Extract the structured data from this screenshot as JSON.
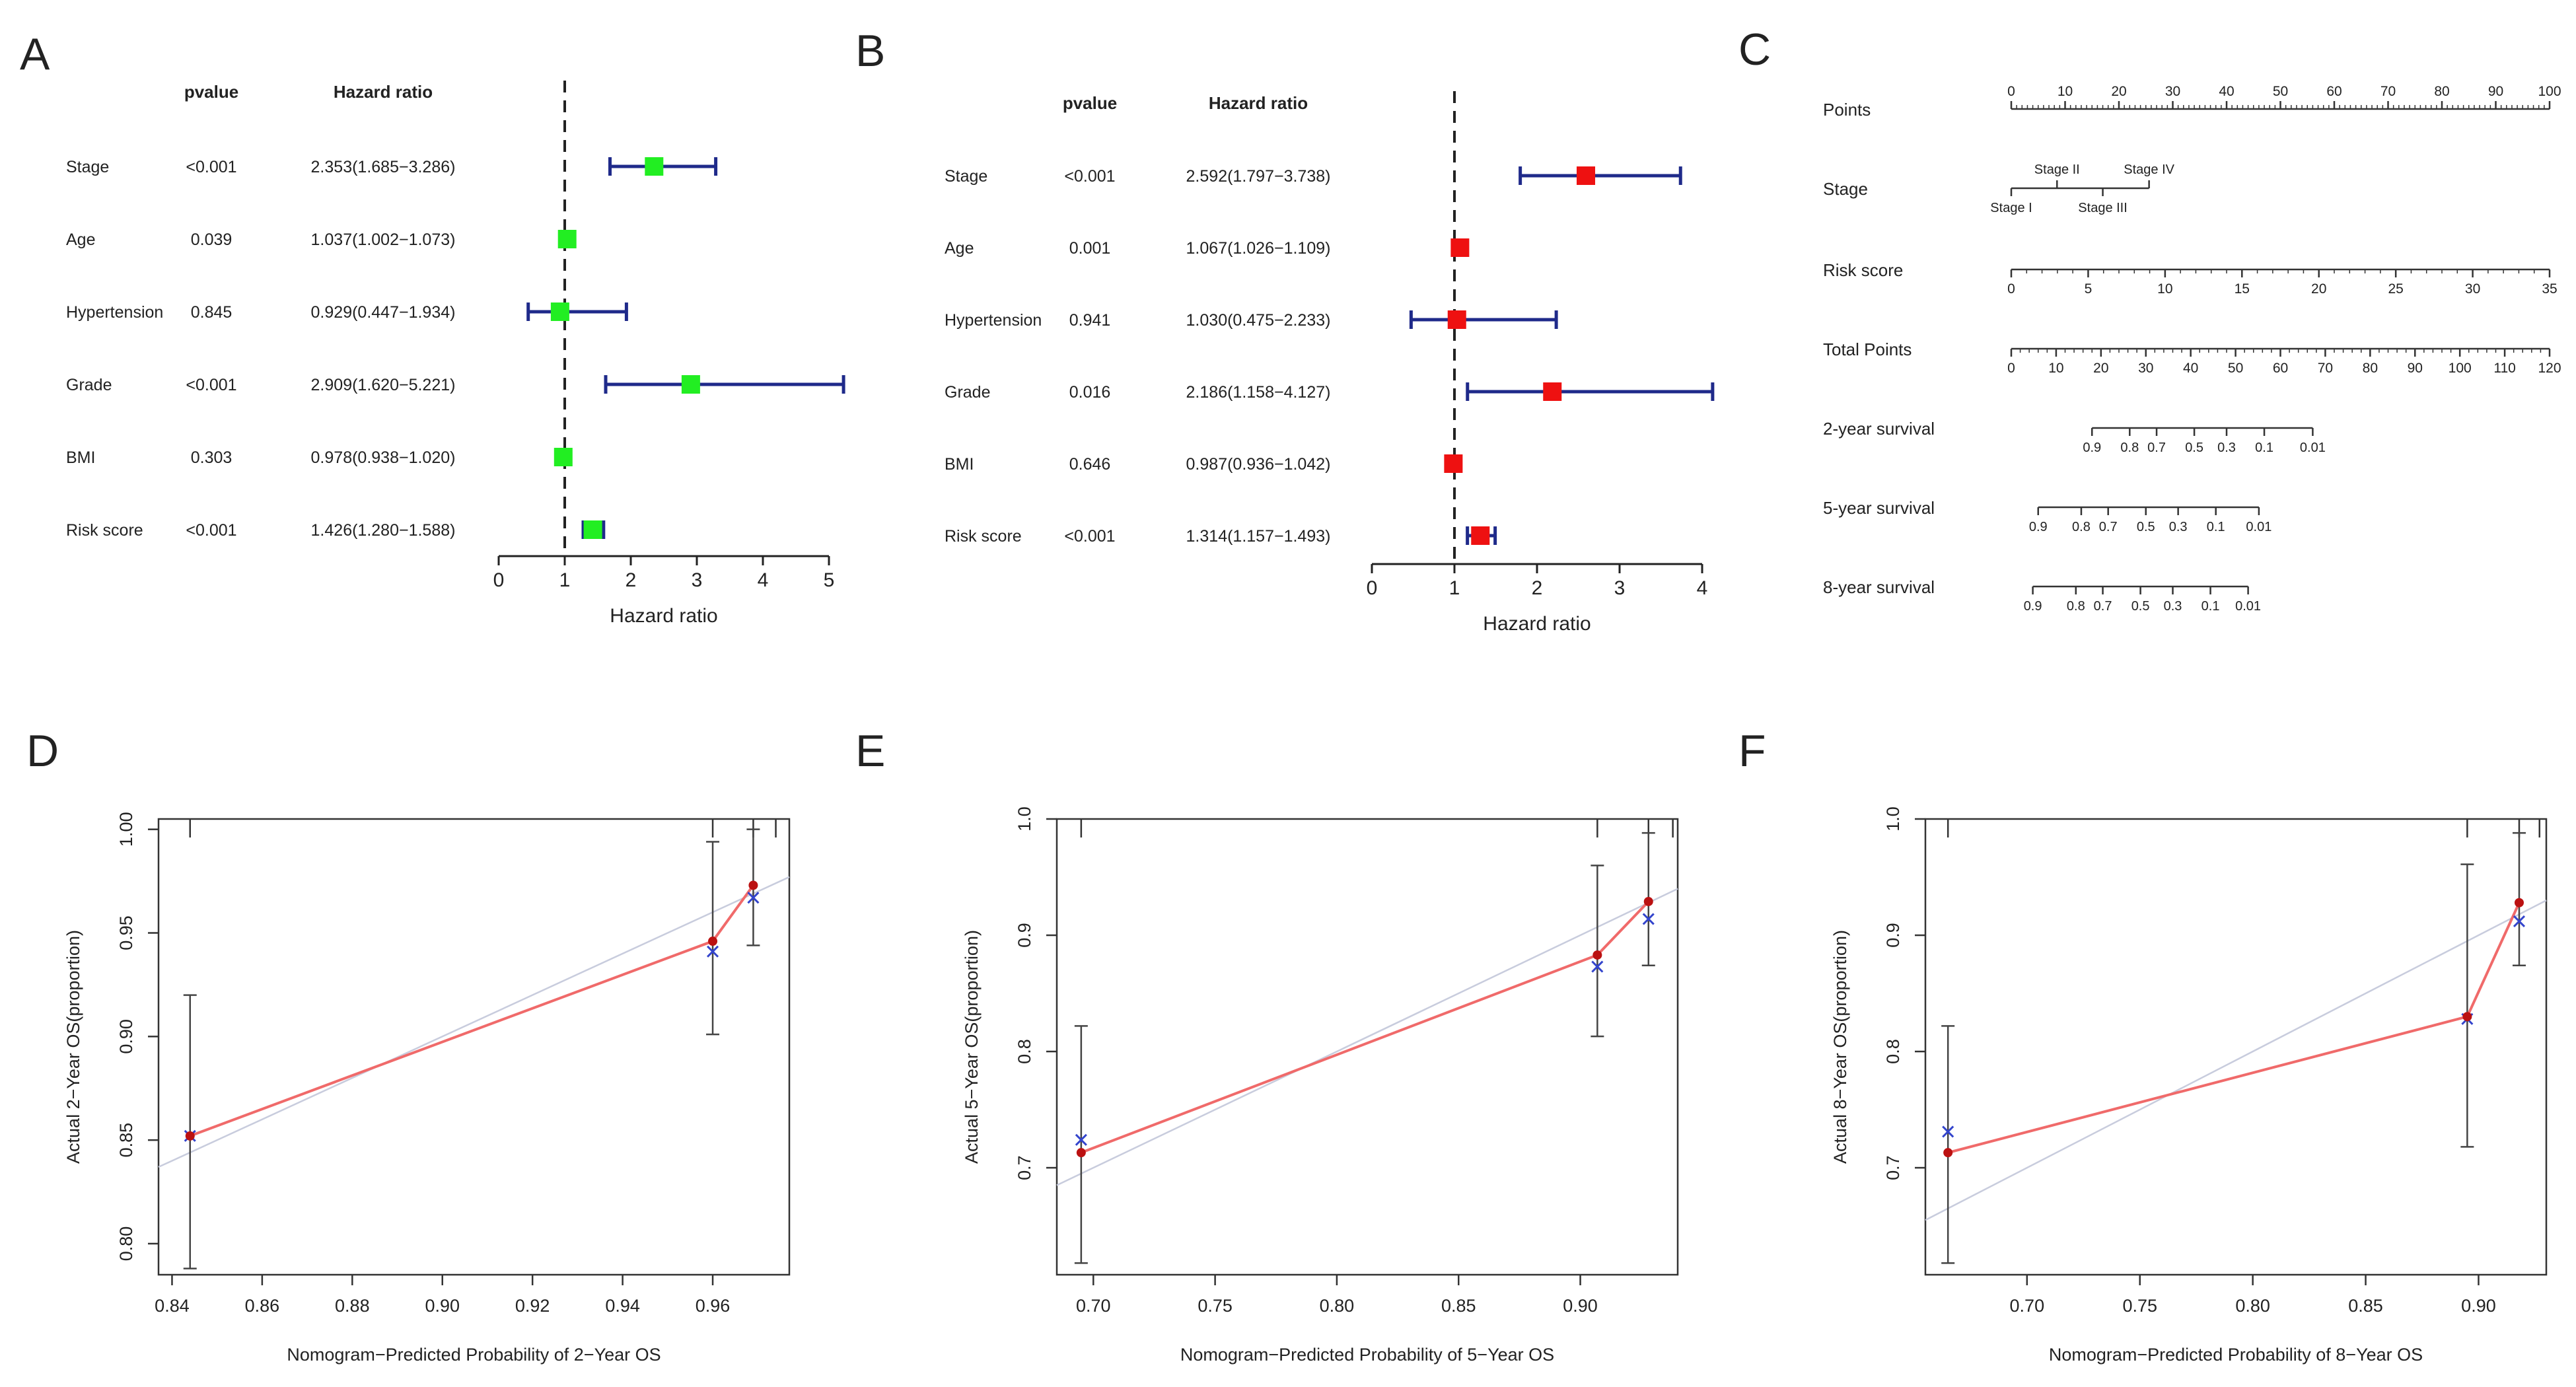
{
  "panels": [
    {
      "letter": "A"
    },
    {
      "letter": "B"
    },
    {
      "letter": "C"
    },
    {
      "letter": "D"
    },
    {
      "letter": "E"
    },
    {
      "letter": "F"
    }
  ],
  "colors": {
    "panel_a_marker": "#22ee22",
    "panel_b_marker": "#ee1111",
    "ci_line": "#1f2a8a",
    "calib_line": "#f06a6a",
    "calib_point": "#bb1111",
    "calib_cross": "#3344cc",
    "ideal_line": "#c8ccdd"
  },
  "chart_data": [
    {
      "panel": "A",
      "type": "forest",
      "col_pvalue": "pvalue",
      "col_hr": "Hazard ratio",
      "xlabel": "Hazard ratio",
      "xlim": [
        0,
        5
      ],
      "xticks": [
        "0",
        "1",
        "2",
        "3",
        "4",
        "5"
      ],
      "rows": [
        {
          "name": "Stage",
          "p": "<0.001",
          "hr_text": "2.353(1.685−3.286)",
          "hr": 2.353,
          "lo": 1.685,
          "hi": 3.286
        },
        {
          "name": "Age",
          "p": "0.039",
          "hr_text": "1.037(1.002−1.073)",
          "hr": 1.037,
          "lo": 1.002,
          "hi": 1.073
        },
        {
          "name": "Hypertension",
          "p": "0.845",
          "hr_text": "0.929(0.447−1.934)",
          "hr": 0.929,
          "lo": 0.447,
          "hi": 1.934
        },
        {
          "name": "Grade",
          "p": "<0.001",
          "hr_text": "2.909(1.620−5.221)",
          "hr": 2.909,
          "lo": 1.62,
          "hi": 5.221
        },
        {
          "name": "BMI",
          "p": "0.303",
          "hr_text": "0.978(0.938−1.020)",
          "hr": 0.978,
          "lo": 0.938,
          "hi": 1.02
        },
        {
          "name": "Risk score",
          "p": "<0.001",
          "hr_text": "1.426(1.280−1.588)",
          "hr": 1.426,
          "lo": 1.28,
          "hi": 1.588
        }
      ]
    },
    {
      "panel": "B",
      "type": "forest",
      "col_pvalue": "pvalue",
      "col_hr": "Hazard ratio",
      "xlabel": "Hazard ratio",
      "xlim": [
        0,
        4
      ],
      "xticks": [
        "0",
        "1",
        "2",
        "3",
        "4"
      ],
      "rows": [
        {
          "name": "Stage",
          "p": "<0.001",
          "hr_text": "2.592(1.797−3.738)",
          "hr": 2.592,
          "lo": 1.797,
          "hi": 3.738
        },
        {
          "name": "Age",
          "p": "0.001",
          "hr_text": "1.067(1.026−1.109)",
          "hr": 1.067,
          "lo": 1.026,
          "hi": 1.109
        },
        {
          "name": "Hypertension",
          "p": "0.941",
          "hr_text": "1.030(0.475−2.233)",
          "hr": 1.03,
          "lo": 0.475,
          "hi": 2.233
        },
        {
          "name": "Grade",
          "p": "0.016",
          "hr_text": "2.186(1.158−4.127)",
          "hr": 2.186,
          "lo": 1.158,
          "hi": 4.127
        },
        {
          "name": "BMI",
          "p": "0.646",
          "hr_text": "0.987(0.936−1.042)",
          "hr": 0.987,
          "lo": 0.936,
          "hi": 1.042
        },
        {
          "name": "Risk score",
          "p": "<0.001",
          "hr_text": "1.314(1.157−1.493)",
          "hr": 1.314,
          "lo": 1.157,
          "hi": 1.493
        }
      ]
    },
    {
      "panel": "C",
      "type": "nomogram",
      "rows": [
        {
          "label": "Points",
          "kind": "scale",
          "min": 0,
          "max": 100,
          "major_step": 10,
          "minor_step": 1,
          "labels_above": true,
          "tick_labels": [
            "0",
            "10",
            "20",
            "30",
            "40",
            "50",
            "60",
            "70",
            "80",
            "90",
            "100"
          ]
        },
        {
          "label": "Stage",
          "kind": "categorical",
          "start": 0,
          "end": 25.6,
          "categories": [
            {
              "name": "Stage I",
              "value": 0,
              "above": false
            },
            {
              "name": "Stage II",
              "value": 8.5,
              "above": true
            },
            {
              "name": "Stage III",
              "value": 17,
              "above": false
            },
            {
              "name": "Stage IV",
              "value": 25.6,
              "above": true
            }
          ]
        },
        {
          "label": "Risk score",
          "kind": "scale",
          "min": 0,
          "max": 35,
          "major_step": 5,
          "minor_step": 1,
          "tick_labels": [
            "0",
            "5",
            "10",
            "15",
            "20",
            "25",
            "30",
            "35"
          ]
        },
        {
          "label": "Total Points",
          "kind": "scale",
          "min": 0,
          "max": 120,
          "major_step": 10,
          "minor_step": 2,
          "tick_labels": [
            "0",
            "10",
            "20",
            "30",
            "40",
            "50",
            "60",
            "70",
            "80",
            "90",
            "100",
            "110",
            "120"
          ]
        },
        {
          "label": "2-year survival",
          "kind": "prob",
          "start": 15,
          "end": 56,
          "tick_labels": [
            "0.9",
            "0.8",
            "0.7",
            "0.5",
            "0.3",
            "0.1",
            "0.01"
          ],
          "tick_positions": [
            15,
            22,
            27,
            34,
            40,
            47,
            56
          ]
        },
        {
          "label": "5-year survival",
          "kind": "prob",
          "start": 5,
          "end": 46,
          "tick_labels": [
            "0.9",
            "0.8",
            "0.7",
            "0.5",
            "0.3",
            "0.1",
            "0.01"
          ],
          "tick_positions": [
            5,
            13,
            18,
            25,
            31,
            38,
            46
          ]
        },
        {
          "label": "8-year survival",
          "kind": "prob",
          "start": 4,
          "end": 44,
          "tick_labels": [
            "0.9",
            "0.8",
            "0.7",
            "0.5",
            "0.3",
            "0.1",
            "0.01"
          ],
          "tick_positions": [
            4,
            12,
            17,
            24,
            30,
            37,
            44
          ]
        }
      ]
    },
    {
      "panel": "D",
      "type": "calibration",
      "xlabel": "Nomogram−Predicted Probability of 2−Year OS",
      "ylabel": "Actual 2−Year OS(proportion)",
      "xlim": [
        0.837,
        0.977
      ],
      "ylim": [
        0.785,
        1.005
      ],
      "xticks": [
        0.84,
        0.86,
        0.88,
        0.9,
        0.92,
        0.94,
        0.96
      ],
      "xtick_labels": [
        "0.84",
        "0.86",
        "0.88",
        "0.90",
        "0.92",
        "0.94",
        "0.96"
      ],
      "yticks": [
        0.8,
        0.85,
        0.9,
        0.95,
        1.0
      ],
      "ytick_labels": [
        "0.80",
        "0.85",
        "0.90",
        "0.95",
        "1.00"
      ],
      "points": [
        {
          "x": 0.844,
          "y": 0.852,
          "cross": 0.852,
          "lo": 0.788,
          "hi": 0.92
        },
        {
          "x": 0.96,
          "y": 0.946,
          "cross": 0.941,
          "lo": 0.901,
          "hi": 0.994
        },
        {
          "x": 0.969,
          "y": 0.973,
          "cross": 0.967,
          "lo": 0.944,
          "hi": 1.0
        }
      ],
      "top_ticks": [
        0.844,
        0.96,
        0.969,
        0.974
      ]
    },
    {
      "panel": "E",
      "type": "calibration",
      "xlabel": "Nomogram−Predicted Probability of 5−Year OS",
      "ylabel": "Actual 5−Year OS(proportion)",
      "xlim": [
        0.685,
        0.94
      ],
      "ylim": [
        0.608,
        1.0
      ],
      "xticks": [
        0.7,
        0.75,
        0.8,
        0.85,
        0.9
      ],
      "xtick_labels": [
        "0.70",
        "0.75",
        "0.80",
        "0.85",
        "0.90"
      ],
      "yticks": [
        0.7,
        0.8,
        0.9,
        1.0
      ],
      "ytick_labels": [
        "0.7",
        "0.8",
        "0.9",
        "1.0"
      ],
      "points": [
        {
          "x": 0.695,
          "y": 0.713,
          "cross": 0.724,
          "lo": 0.618,
          "hi": 0.822
        },
        {
          "x": 0.907,
          "y": 0.883,
          "cross": 0.873,
          "lo": 0.813,
          "hi": 0.96
        },
        {
          "x": 0.928,
          "y": 0.929,
          "cross": 0.914,
          "lo": 0.874,
          "hi": 0.988
        }
      ],
      "top_ticks": [
        0.695,
        0.907,
        0.928,
        0.938
      ]
    },
    {
      "panel": "F",
      "type": "calibration",
      "xlabel": "Nomogram−Predicted Probability of 8−Year OS",
      "ylabel": "Actual 8−Year OS(proportion)",
      "xlim": [
        0.655,
        0.93
      ],
      "ylim": [
        0.608,
        1.0
      ],
      "xticks": [
        0.7,
        0.75,
        0.8,
        0.85,
        0.9
      ],
      "xtick_labels": [
        "0.70",
        "0.75",
        "0.80",
        "0.85",
        "0.90"
      ],
      "yticks": [
        0.7,
        0.8,
        0.9,
        1.0
      ],
      "ytick_labels": [
        "0.7",
        "0.8",
        "0.9",
        "1.0"
      ],
      "points": [
        {
          "x": 0.665,
          "y": 0.713,
          "cross": 0.731,
          "lo": 0.618,
          "hi": 0.822
        },
        {
          "x": 0.895,
          "y": 0.83,
          "cross": 0.828,
          "lo": 0.718,
          "hi": 0.961
        },
        {
          "x": 0.918,
          "y": 0.928,
          "cross": 0.912,
          "lo": 0.874,
          "hi": 0.988
        }
      ],
      "top_ticks": [
        0.665,
        0.895,
        0.918,
        0.927
      ]
    }
  ]
}
